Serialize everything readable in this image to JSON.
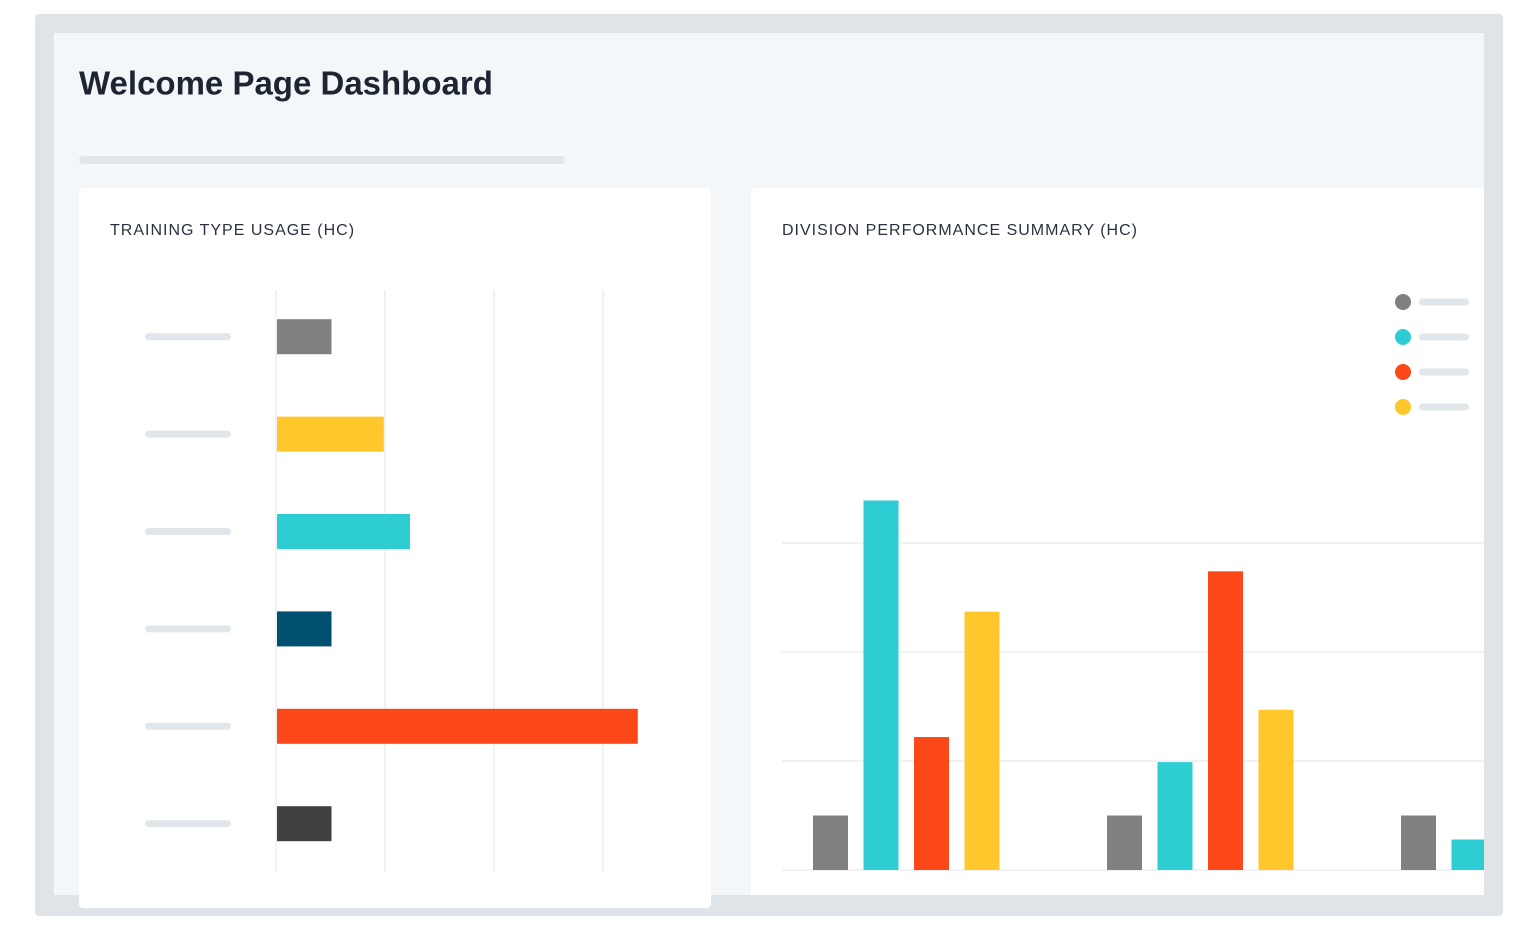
{
  "header": {
    "title": "Welcome Page Dashboard"
  },
  "chart_data": [
    {
      "type": "barh",
      "title": "TRAINING TYPE USAGE (HC)",
      "categories": [
        null,
        null,
        null,
        null,
        null,
        null
      ],
      "values": [
        0.5,
        0.98,
        1.22,
        0.5,
        3.31,
        0.5
      ],
      "colors": [
        "#808080",
        "#ffc72c",
        "#2dcdd3",
        "#004e70",
        "#fc4818",
        "#404040"
      ],
      "xlim": [
        0,
        4
      ],
      "xticks": [
        0,
        1,
        2,
        3
      ],
      "grid": true
    },
    {
      "type": "bar",
      "title": "DIVISION PERFORMANCE SUMMARY (HC)",
      "categories": [
        null,
        null,
        null
      ],
      "series": [
        {
          "color": "#808080",
          "values": [
            0.5,
            0.5,
            0.5
          ]
        },
        {
          "color": "#2dcdd3",
          "values": [
            3.39,
            0.99,
            0.28
          ]
        },
        {
          "color": "#fc4818",
          "values": [
            1.22,
            2.74,
            null
          ]
        },
        {
          "color": "#ffc72c",
          "values": [
            2.37,
            1.47,
            null
          ]
        }
      ],
      "ylim": [
        0,
        3.5
      ],
      "yticks": [
        0,
        1,
        2,
        3
      ],
      "grid": true,
      "legend": "top-right"
    }
  ]
}
